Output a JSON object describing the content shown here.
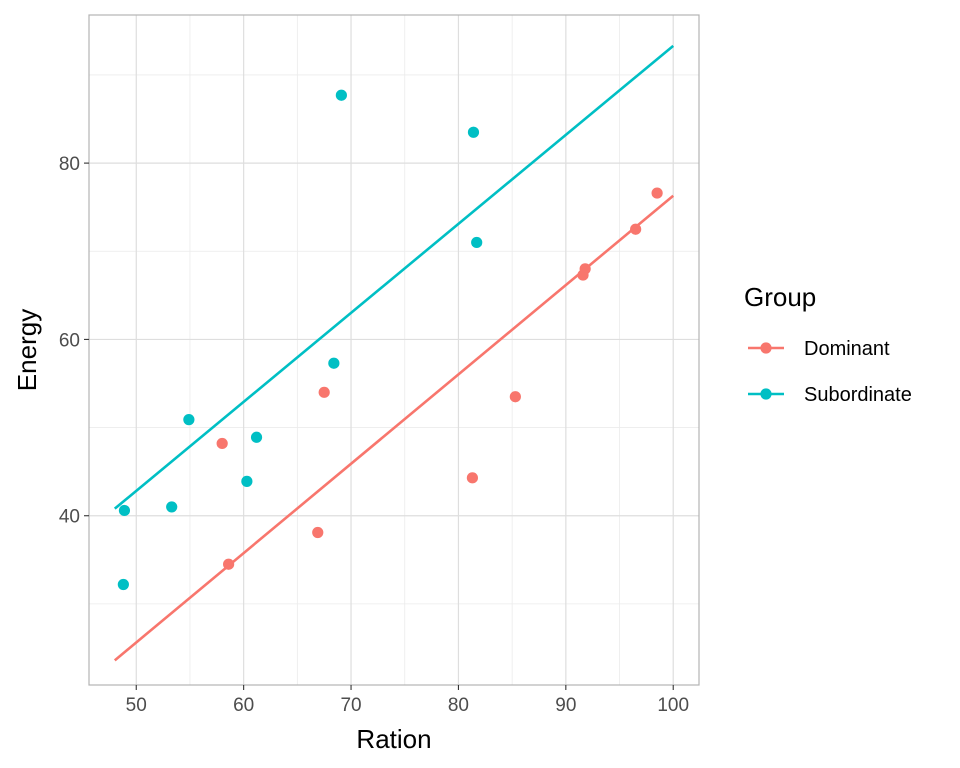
{
  "chart_data": {
    "type": "scatter",
    "xlabel": "Ration",
    "ylabel": "Energy",
    "xlim": [
      45.6,
      102.4
    ],
    "ylim": [
      20.8,
      96.8
    ],
    "x_ticks": [
      50,
      60,
      70,
      80,
      90,
      100
    ],
    "x_tick_labels": [
      "50",
      "60",
      "70",
      "80",
      "90",
      "100"
    ],
    "y_ticks": [
      40,
      60,
      80
    ],
    "y_tick_labels": [
      "40",
      "60",
      "80"
    ],
    "x_minor_ticks": [
      55,
      65,
      75,
      85,
      95
    ],
    "y_minor_ticks": [
      30,
      50,
      70,
      90
    ],
    "grid": true,
    "legend": {
      "title": "Group",
      "position": "right"
    },
    "series": [
      {
        "name": "Dominant",
        "color": "#F8766D",
        "points": [
          {
            "x": 58.0,
            "y": 48.2
          },
          {
            "x": 58.6,
            "y": 34.5
          },
          {
            "x": 66.9,
            "y": 38.1
          },
          {
            "x": 67.5,
            "y": 54.0
          },
          {
            "x": 81.3,
            "y": 44.3
          },
          {
            "x": 85.3,
            "y": 53.5
          },
          {
            "x": 91.6,
            "y": 67.3
          },
          {
            "x": 91.8,
            "y": 68.0
          },
          {
            "x": 96.5,
            "y": 72.5
          },
          {
            "x": 98.5,
            "y": 76.6
          }
        ],
        "fit_line": {
          "x": [
            48,
            100
          ],
          "y": [
            23.6,
            76.3
          ]
        }
      },
      {
        "name": "Subordinate",
        "color": "#00BFC4",
        "points": [
          {
            "x": 48.8,
            "y": 32.2
          },
          {
            "x": 48.9,
            "y": 40.6
          },
          {
            "x": 53.3,
            "y": 41.0
          },
          {
            "x": 54.9,
            "y": 50.9
          },
          {
            "x": 60.3,
            "y": 43.9
          },
          {
            "x": 61.2,
            "y": 48.9
          },
          {
            "x": 68.4,
            "y": 57.3
          },
          {
            "x": 69.1,
            "y": 87.7
          },
          {
            "x": 81.4,
            "y": 83.5
          },
          {
            "x": 81.7,
            "y": 71.0
          }
        ],
        "fit_line": {
          "x": [
            48,
            100
          ],
          "y": [
            40.8,
            93.3
          ]
        }
      }
    ]
  }
}
